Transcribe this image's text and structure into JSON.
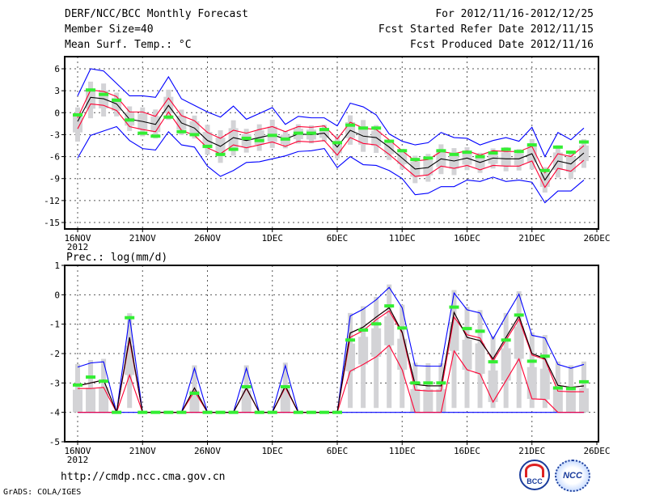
{
  "header": {
    "title": "DERF/NCC/BCC Monthly Forecast",
    "member": "Member Size=40",
    "variable": "Mean Surf. Temp.: °C",
    "period": "For 2012/11/16-2012/12/25",
    "refer": "Fcst Started Refer Date 2012/11/15",
    "produced": "Fcst Produced Date 2012/11/16"
  },
  "footer": {
    "url": "http://cmdp.ncc.cma.gov.cn",
    "grads": "GrADS: COLA/IGES",
    "logo_bcc": "BCC",
    "logo_ncc": "NCC"
  },
  "colors": {
    "max_min": "#0000ff",
    "spread": "#ff0033",
    "mean": "#000000",
    "observed": "#33ee33",
    "box": "#d3d3d6"
  },
  "chart_data": [
    {
      "type": "line",
      "title": "Mean Surf. Temp.: °C",
      "ylim": [
        -15,
        6
      ],
      "ystep": 3,
      "yticks": [
        "6",
        "3",
        "0",
        "-3",
        "-6",
        "-9",
        "-12",
        "-15"
      ],
      "xticks": [
        "16NOV",
        "21NOV",
        "26NOV",
        "1DEC",
        "6DEC",
        "11DEC",
        "16DEC",
        "21DEC",
        "26DEC"
      ],
      "xyear": "2012",
      "x_days": "2012-11-16 to 2012-12-25 (40 days)",
      "series": [
        {
          "name": "max",
          "values": [
            2.3,
            6,
            5.7,
            4,
            2.3,
            2.3,
            2.1,
            4.9,
            1.9,
            1.0,
            0.1,
            -0.6,
            0.9,
            -0.9,
            -0.1,
            0.7,
            -1.6,
            -0.5,
            -0.7,
            -0.7,
            -1.8,
            1.3,
            0.8,
            -0.3,
            -2.9,
            -3.9,
            -4.4,
            -4.1,
            -2.7,
            -3.4,
            -3.5,
            -4.4,
            -3.8,
            -3.4,
            -3.9,
            -2.0,
            -6.0,
            -2.7,
            -3.7,
            -2.1
          ]
        },
        {
          "name": "upper",
          "values": [
            -0.7,
            3.1,
            2.9,
            2.2,
            0.1,
            0.1,
            -0.5,
            2.0,
            -0.4,
            -1.1,
            -2.7,
            -3.5,
            -2.4,
            -2.8,
            -2.3,
            -1.9,
            -2.6,
            -1.9,
            -2.0,
            -1.8,
            -3.6,
            -1.3,
            -2.1,
            -2.3,
            -3.7,
            -5.2,
            -6.6,
            -6.4,
            -5.3,
            -5.6,
            -5.2,
            -5.8,
            -5.2,
            -5.3,
            -5.3,
            -4.6,
            -8.2,
            -5.6,
            -6.0,
            -4.5
          ]
        },
        {
          "name": "mean",
          "values": [
            -1.2,
            2.1,
            1.9,
            1.2,
            -0.9,
            -1.2,
            -1.6,
            1.0,
            -1.4,
            -2.1,
            -3.8,
            -4.6,
            -3.4,
            -3.8,
            -3.4,
            -3.0,
            -3.6,
            -2.9,
            -3.0,
            -2.8,
            -4.7,
            -2.4,
            -3.2,
            -3.4,
            -4.7,
            -6.2,
            -7.7,
            -7.5,
            -6.3,
            -6.6,
            -6.2,
            -6.8,
            -6.2,
            -6.3,
            -6.3,
            -5.6,
            -9.2,
            -6.6,
            -7.0,
            -5.5
          ]
        },
        {
          "name": "lower",
          "values": [
            -2.2,
            1.2,
            1.0,
            0.3,
            -1.9,
            -2.3,
            -2.6,
            0.1,
            -2.4,
            -3.1,
            -4.8,
            -5.6,
            -4.4,
            -4.8,
            -4.4,
            -4.0,
            -4.6,
            -3.9,
            -4.0,
            -3.8,
            -5.8,
            -3.4,
            -4.2,
            -4.4,
            -5.7,
            -7.2,
            -8.7,
            -8.5,
            -7.3,
            -7.6,
            -7.2,
            -7.8,
            -7.2,
            -7.3,
            -7.3,
            -6.6,
            -10.2,
            -7.6,
            -8.0,
            -6.5
          ]
        },
        {
          "name": "min",
          "values": [
            -6.2,
            -3.1,
            -2.5,
            -1.9,
            -3.8,
            -4.9,
            -5.1,
            -2.6,
            -4.4,
            -4.7,
            -7.3,
            -8.7,
            -7.9,
            -6.8,
            -6.7,
            -6.3,
            -5.9,
            -5.3,
            -5.2,
            -4.9,
            -7.5,
            -6.0,
            -7.1,
            -7.2,
            -7.9,
            -9.0,
            -11.2,
            -11.0,
            -10.1,
            -10.1,
            -9.2,
            -9.4,
            -8.8,
            -9.4,
            -9.2,
            -9.5,
            -12.3,
            -10.7,
            -10.7,
            -9.2
          ]
        },
        {
          "name": "observed",
          "values": [
            -0.3,
            3.1,
            2.5,
            1.7,
            -1.0,
            -2.8,
            -3.2,
            -0.6,
            -2.6,
            -3.0,
            -4.6,
            -5.7,
            -5.0,
            -3.5,
            -3.8,
            -3.1,
            -3.6,
            -2.8,
            -2.8,
            -2.3,
            -4.1,
            -1.7,
            -2.1,
            -2.1,
            -3.9,
            -5.2,
            -6.4,
            -6.2,
            -5.2,
            -5.7,
            -5.4,
            -6.0,
            -5.5,
            -5.0,
            -5.3,
            -4.4,
            -7.9,
            -4.7,
            -5.4,
            -4.0
          ]
        }
      ]
    },
    {
      "type": "line",
      "title": "Prec.: log(mm/d)",
      "ylim": [
        -5,
        1
      ],
      "ystep": 1,
      "yticks": [
        "1",
        "0",
        "-1",
        "-2",
        "-3",
        "-4",
        "-5"
      ],
      "xticks": [
        "16NOV",
        "21NOV",
        "26NOV",
        "1DEC",
        "6DEC",
        "11DEC",
        "16DEC",
        "21DEC",
        "26DEC"
      ],
      "xyear": "2012",
      "series": [
        {
          "name": "max",
          "values": [
            -2.46,
            -2.32,
            -2.28,
            -4,
            -0.73,
            -4,
            -4,
            -4,
            -4,
            -2.5,
            -4,
            -4,
            -4,
            -2.5,
            -4,
            -4,
            -2.41,
            -4,
            -4,
            -4,
            -4,
            -0.72,
            -0.49,
            -0.17,
            0.25,
            -0.44,
            -2.41,
            -2.43,
            -2.43,
            0.06,
            -0.51,
            -0.62,
            -1.5,
            -0.72,
            0.02,
            -1.38,
            -1.47,
            -2.37,
            -2.5,
            -2.37
          ]
        },
        {
          "name": "upper",
          "values": [
            -3.1,
            -3.0,
            -2.9,
            -4,
            -1.45,
            -4,
            -4,
            -4,
            -4,
            -3.17,
            -4,
            -4,
            -4,
            -3.17,
            -4,
            -4,
            -3.1,
            -4,
            -4,
            -4,
            -4,
            -1.3,
            -1.1,
            -0.76,
            -0.44,
            -1.27,
            -3.05,
            -3.1,
            -3.1,
            -0.6,
            -1.45,
            -1.56,
            -2.18,
            -1.45,
            -0.72,
            -2.0,
            -2.17,
            -3.08,
            -3.15,
            -3.1
          ]
        },
        {
          "name": "mean",
          "values": [
            -3.1,
            -3.0,
            -2.9,
            -4,
            -1.45,
            -4,
            -4,
            -4,
            -4,
            -3.17,
            -4,
            -4,
            -4,
            -3.17,
            -4,
            -4,
            -3.1,
            -4,
            -4,
            -4,
            -4,
            -1.3,
            -1.1,
            -0.76,
            -0.44,
            -1.27,
            -3.05,
            -3.1,
            -3.1,
            -0.6,
            -1.45,
            -1.56,
            -2.18,
            -1.45,
            -0.72,
            -2.0,
            -2.17,
            -3.08,
            -3.15,
            -3.1
          ]
        },
        {
          "name": "lower",
          "values": [
            -3.19,
            -3.19,
            -3.15,
            -4,
            -1.54,
            -4,
            -4,
            -4,
            -4,
            -3.28,
            -4,
            -4,
            -4,
            -3.19,
            -4,
            -4,
            -3.15,
            -4,
            -4,
            -4,
            -4,
            -1.45,
            -1.22,
            -0.85,
            -0.55,
            -1.3,
            -3.24,
            -3.27,
            -3.27,
            -0.76,
            -1.36,
            -1.47,
            -2.26,
            -1.54,
            -0.83,
            -2.05,
            -2.2,
            -3.28,
            -3.3,
            -3.3
          ]
        },
        {
          "name": "lower2",
          "values": [
            -4,
            -4,
            -4,
            -4,
            -2.73,
            -4,
            -4,
            -4,
            -4,
            -4,
            -4,
            -4,
            -4,
            -4,
            -4,
            -4,
            -4,
            -4,
            -4,
            -4,
            -4,
            -2.6,
            -2.37,
            -2.11,
            -1.72,
            -2.55,
            -4,
            -4,
            -4,
            -1.91,
            -2.55,
            -2.69,
            -3.65,
            -2.92,
            -2.18,
            -3.54,
            -3.56,
            -4,
            -4,
            -4
          ]
        },
        {
          "name": "min",
          "values": [
            -4,
            -4,
            -4,
            -4,
            -4,
            -4,
            -4,
            -4,
            -4,
            -4,
            -4,
            -4,
            -4,
            -4,
            -4,
            -4,
            -4,
            -4,
            -4,
            -4,
            -4,
            -4,
            -4,
            -4,
            -4,
            -4,
            -4,
            -4,
            -4,
            -4,
            -4,
            -4,
            -4,
            -4,
            -4,
            -4,
            -4,
            -4,
            -4,
            -4
          ]
        },
        {
          "name": "observed",
          "values": [
            -3.07,
            -2.8,
            -2.94,
            -4,
            -0.78,
            -4,
            -4,
            -4,
            -4,
            -3.35,
            -4,
            -4,
            -4,
            -3.13,
            -4,
            -4,
            -3.13,
            -4,
            -4,
            -4,
            -4,
            -1.54,
            -1.2,
            -0.99,
            -0.38,
            -1.13,
            -3.0,
            -3.0,
            -3.0,
            -0.42,
            -1.15,
            -1.24,
            -2.28,
            -1.54,
            -0.69,
            -2.26,
            -2.09,
            -3.17,
            -3.19,
            -2.96
          ]
        }
      ]
    }
  ]
}
